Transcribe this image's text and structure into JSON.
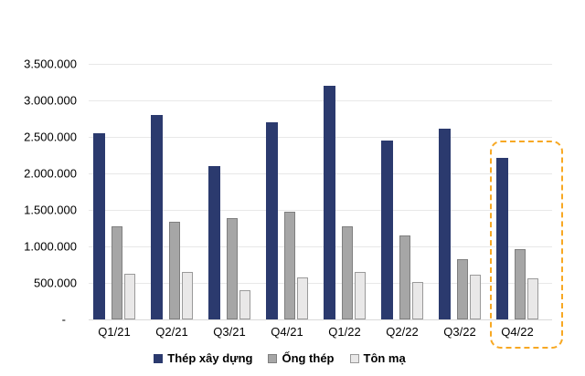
{
  "chart_data": {
    "type": "bar",
    "title": "",
    "xlabel": "",
    "ylabel": "",
    "categories": [
      "Q1/21",
      "Q2/21",
      "Q3/21",
      "Q4/21",
      "Q1/22",
      "Q2/22",
      "Q3/22",
      "Q4/22"
    ],
    "series": [
      {
        "name": "Thép xây dựng",
        "color": "#2b3a6e",
        "border_color": "#2b3a6e",
        "values": [
          2550000,
          2800000,
          2100000,
          2700000,
          3200000,
          2450000,
          2610000,
          2210000
        ]
      },
      {
        "name": "Ống thép",
        "color": "#a6a6a6",
        "border_color": "#7f7f7f",
        "values": [
          1270000,
          1340000,
          1390000,
          1470000,
          1270000,
          1150000,
          830000,
          960000
        ]
      },
      {
        "name": "Tôn mạ",
        "color": "#e9e8e8",
        "border_color": "#9a9a9a",
        "values": [
          630000,
          650000,
          400000,
          570000,
          650000,
          510000,
          610000,
          560000
        ]
      }
    ],
    "y_axis": {
      "min": 0,
      "max": 3500000,
      "step": 500000,
      "ticks": [
        {
          "value": 0,
          "label": "-"
        },
        {
          "value": 500000,
          "label": "500.000"
        },
        {
          "value": 1000000,
          "label": "1.000.000"
        },
        {
          "value": 1500000,
          "label": "1.500.000"
        },
        {
          "value": 2000000,
          "label": "2.000.000"
        },
        {
          "value": 2500000,
          "label": "2.500.000"
        },
        {
          "value": 3000000,
          "label": "3.000.000"
        },
        {
          "value": 3500000,
          "label": "3.500.000"
        }
      ]
    },
    "grid": true,
    "legend_position": "bottom",
    "highlight": {
      "category": "Q4/22",
      "style": "dashed-rounded-rect",
      "color": "#f7a823"
    }
  }
}
